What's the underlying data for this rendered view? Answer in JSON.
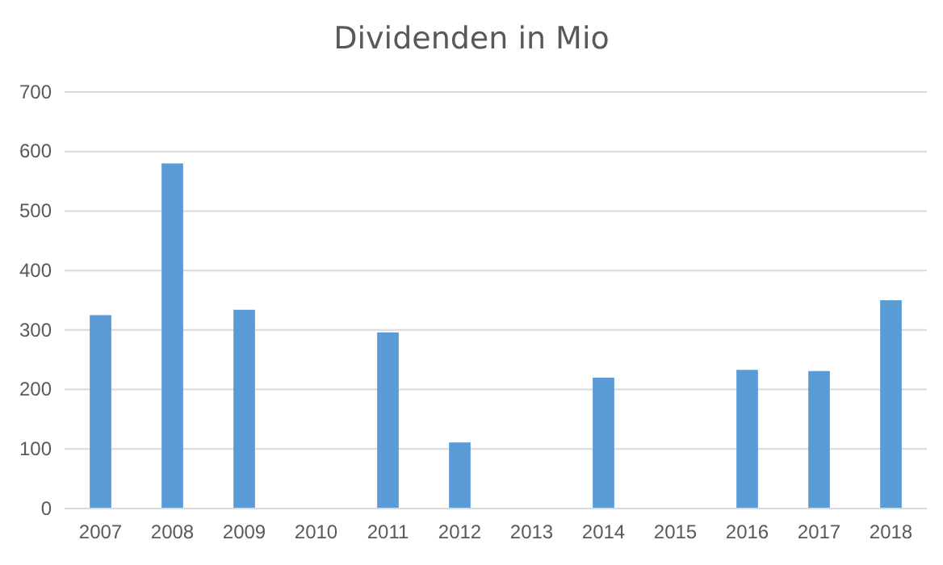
{
  "chart_data": {
    "type": "bar",
    "title": "Dividenden in Mio",
    "categories": [
      "2007",
      "2008",
      "2009",
      "2010",
      "2011",
      "2012",
      "2013",
      "2014",
      "2015",
      "2016",
      "2017",
      "2018"
    ],
    "values": [
      325,
      580,
      334,
      null,
      296,
      111,
      null,
      220,
      null,
      233,
      231,
      350
    ],
    "color": "#5b9bd5",
    "ylim": [
      0,
      700
    ],
    "yticks": [
      0,
      100,
      200,
      300,
      400,
      500,
      600,
      700
    ],
    "grid": "y"
  }
}
